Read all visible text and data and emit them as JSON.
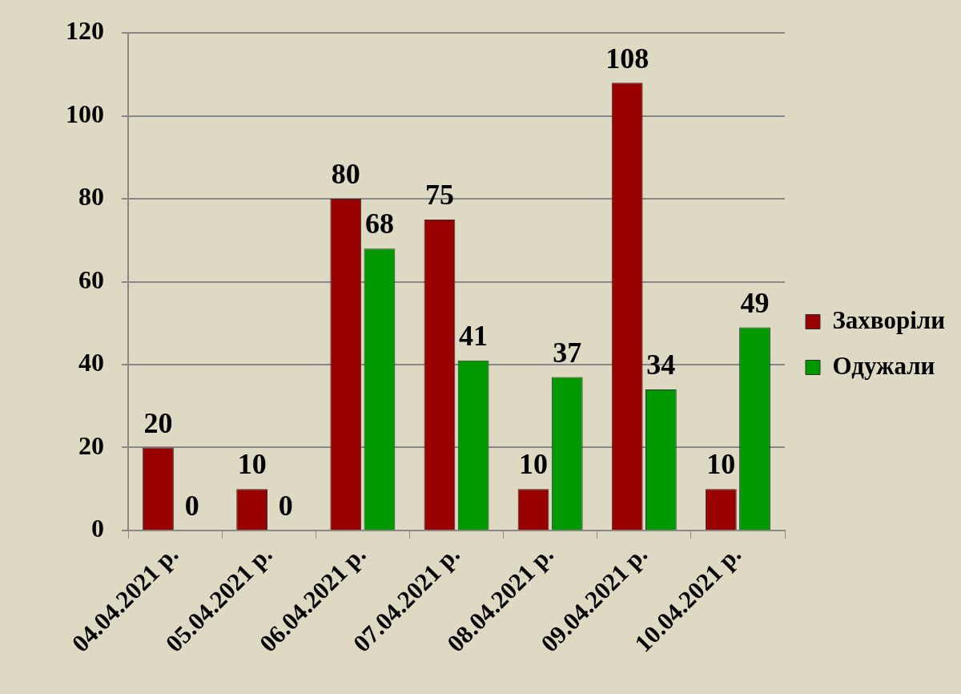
{
  "chart_data": {
    "type": "bar",
    "categories": [
      "04.04.2021 р.",
      "05.04.2021 р.",
      "06.04.2021 р.",
      "07.04.2021 р.",
      "08.04.2021 р.",
      "09.04.2021 р.",
      "10.04.2021 р."
    ],
    "series": [
      {
        "name": "Захворіли",
        "color": "#990000",
        "values": [
          20,
          10,
          80,
          75,
          10,
          108,
          10
        ]
      },
      {
        "name": "Одужали",
        "color": "#009900",
        "values": [
          0,
          0,
          68,
          41,
          37,
          34,
          49
        ]
      }
    ],
    "ylim": [
      0,
      120
    ],
    "yticks": [
      0,
      20,
      40,
      60,
      80,
      100,
      120
    ],
    "grid": "y",
    "legend": "right",
    "data_labels": true
  }
}
